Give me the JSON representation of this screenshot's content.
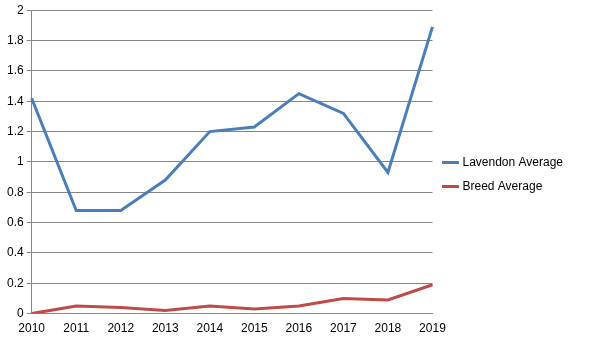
{
  "chart_data": {
    "type": "line",
    "categories": [
      "2010",
      "2011",
      "2012",
      "2013",
      "2014",
      "2015",
      "2016",
      "2017",
      "2018",
      "2019"
    ],
    "series": [
      {
        "name": "Lavendon Average",
        "color": "#4a7ebb",
        "values": [
          1.42,
          0.68,
          0.68,
          0.88,
          1.2,
          1.23,
          1.45,
          1.32,
          0.93,
          1.89
        ]
      },
      {
        "name": "Breed Average",
        "color": "#be4b48",
        "values": [
          0,
          0.05,
          0.04,
          0.02,
          0.05,
          0.03,
          0.05,
          0.1,
          0.09,
          0.19
        ]
      }
    ],
    "ylim": [
      0,
      2
    ],
    "yticks": [
      0,
      0.2,
      0.4,
      0.6,
      0.8,
      1,
      1.2,
      1.4,
      1.6,
      1.8,
      2
    ],
    "grid": true,
    "legend": "right"
  }
}
